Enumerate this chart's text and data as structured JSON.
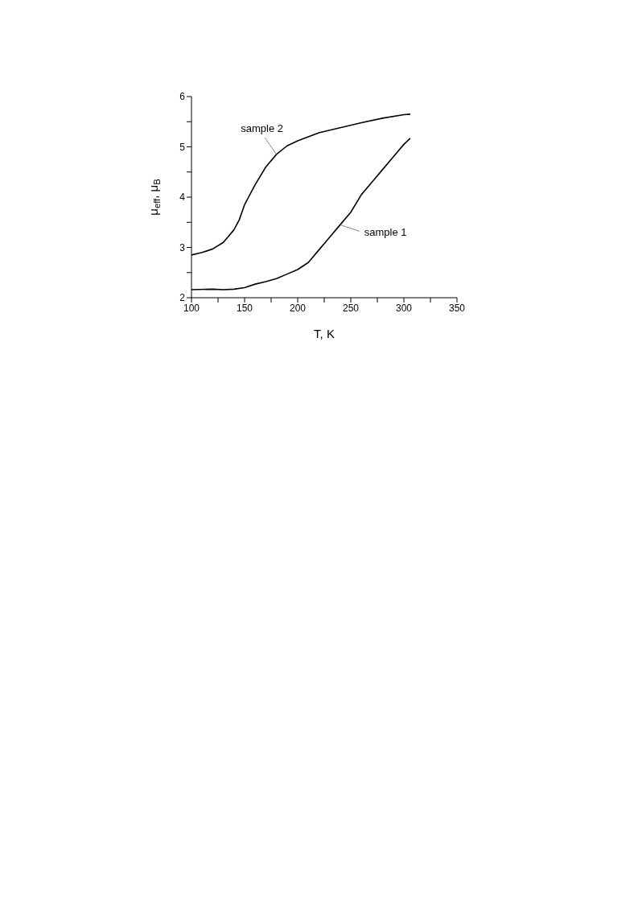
{
  "chart_data": {
    "type": "line",
    "xlabel": "T, K",
    "ylabel": "μ$_{eff}$, μ$_{B}$",
    "xlim": [
      100,
      350
    ],
    "xticks": [
      100,
      {
        "value": 125,
        "label": null
      },
      150,
      {
        "value": 175,
        "label": null
      },
      200,
      {
        "value": 225,
        "label": null
      },
      250,
      {
        "value": 275,
        "label": null
      },
      300,
      {
        "value": 325,
        "label": null
      },
      350
    ],
    "ylim": [
      2,
      6
    ],
    "yticks": [
      2,
      {
        "value": 2.5,
        "label": null
      },
      3,
      {
        "value": 3.5,
        "label": null
      },
      4,
      {
        "value": 4.5,
        "label": null
      },
      5,
      {
        "value": 5.5,
        "label": null
      },
      6
    ],
    "grid": false,
    "legend": false,
    "marker": "none",
    "line_style": "solid",
    "series": [
      {
        "name": "sample 2",
        "color": "#000000",
        "x": [
          100,
          110,
          120,
          130,
          140,
          145,
          150,
          160,
          170,
          180,
          190,
          200,
          210,
          220,
          240,
          260,
          280,
          300,
          306
        ],
        "values": [
          2.85,
          2.9,
          2.97,
          3.1,
          3.35,
          3.55,
          3.85,
          4.25,
          4.6,
          4.85,
          5.02,
          5.12,
          5.2,
          5.28,
          5.38,
          5.48,
          5.57,
          5.64,
          5.65
        ]
      },
      {
        "name": "sample 1",
        "color": "#000000",
        "x": [
          100,
          120,
          130,
          140,
          150,
          160,
          170,
          180,
          190,
          200,
          210,
          220,
          230,
          240,
          250,
          260,
          270,
          280,
          290,
          300,
          306
        ],
        "values": [
          2.16,
          2.17,
          2.16,
          2.17,
          2.2,
          2.27,
          2.32,
          2.38,
          2.47,
          2.56,
          2.7,
          2.95,
          3.2,
          3.45,
          3.7,
          4.05,
          4.3,
          4.55,
          4.8,
          5.05,
          5.17
        ]
      }
    ]
  }
}
